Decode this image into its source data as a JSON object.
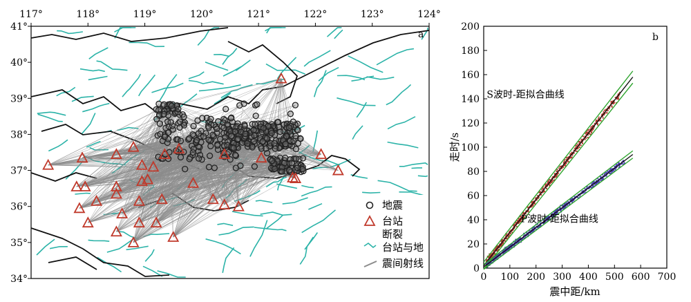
{
  "panel_a": {
    "label": "a",
    "x_ticks": [
      "117°",
      "118°",
      "119°",
      "120°",
      "121°",
      "122°",
      "123°",
      "124°"
    ],
    "y_ticks": [
      "41°",
      "40°",
      "39°",
      "38°",
      "37°",
      "36°",
      "35°",
      "34°"
    ],
    "legend": {
      "earthquake": "地震",
      "station": "台站",
      "fault": "断裂",
      "station_ray": "台站与地",
      "quake_ray": "震间射线"
    },
    "colors": {
      "fault": "#2bb3a8",
      "ray": "#8c8c8c",
      "station": "#c0392b",
      "quake": "#222222"
    }
  },
  "chart_data": {
    "type": "scatter",
    "panel_label": "b",
    "xlabel": "震中距/km",
    "ylabel": "走时/s",
    "xlim": [
      0,
      700
    ],
    "ylim": [
      0,
      200
    ],
    "x_ticks": [
      0,
      100,
      200,
      300,
      400,
      500,
      600,
      700
    ],
    "y_ticks": [
      0,
      20,
      40,
      60,
      80,
      100,
      120,
      140,
      160,
      180,
      200
    ],
    "annotations": [
      {
        "text": "S波时-距拟合曲线",
        "x": 160,
        "y": 141
      },
      {
        "text": "P波时-距拟合曲线",
        "x": 290,
        "y": 38
      }
    ],
    "series": [
      {
        "color": "#b03a2e",
        "fit_line": {
          "x": [
            0,
            570
          ],
          "y": [
            2,
            158
          ]
        },
        "bounds": [
          {
            "x": [
              0,
              570
            ],
            "y": [
              5,
              163
            ]
          },
          {
            "x": [
              0,
              570
            ],
            "y": [
              -1,
              153
            ]
          }
        ],
        "points_x_range": [
          10,
          520
        ]
      },
      {
        "color": "#4b3fb0",
        "fit_line": {
          "x": [
            0,
            570
          ],
          "y": [
            1,
            94
          ]
        },
        "bounds": [
          {
            "x": [
              0,
              570
            ],
            "y": [
              3,
              97
            ]
          },
          {
            "x": [
              0,
              570
            ],
            "y": [
              -1,
              91
            ]
          }
        ],
        "points_x_range": [
          10,
          540
        ]
      }
    ]
  }
}
